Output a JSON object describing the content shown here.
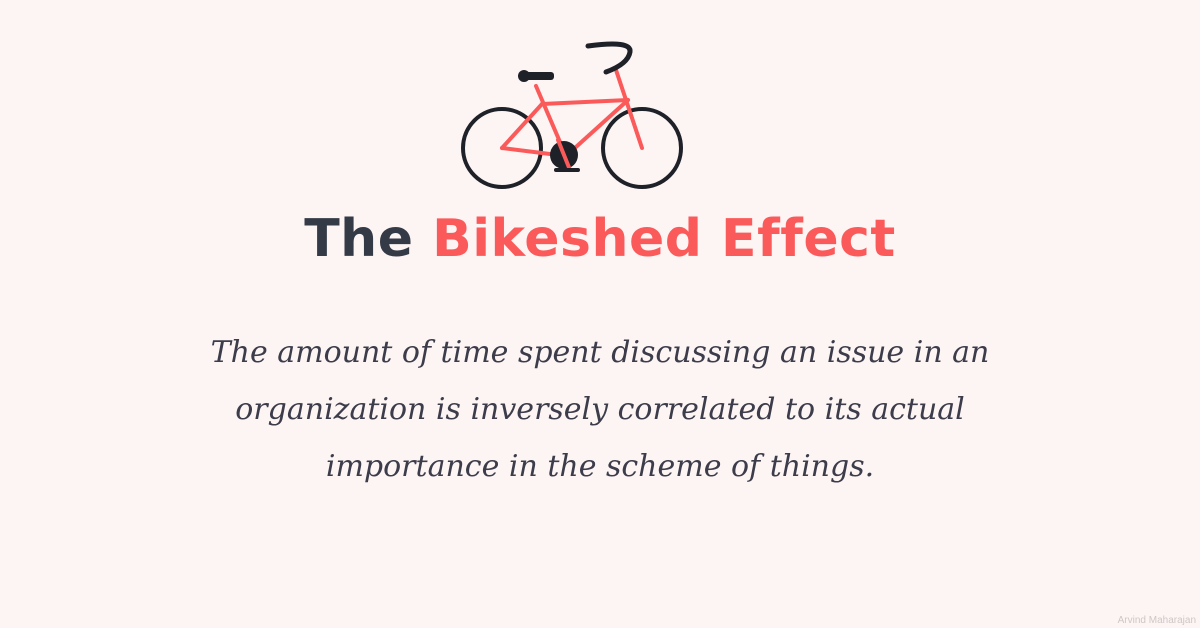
{
  "title": {
    "plain": "The",
    "accent": "Bikeshed Effect"
  },
  "quote": {
    "line1": "The amount of time spent discussing an issue in an",
    "line2": "organization is inversely correlated to its actual",
    "line3": "importance in the scheme of things."
  },
  "credit": "Arvind Maharajan",
  "illustration": {
    "icon": "bicycle-icon"
  },
  "colors": {
    "background": "#fdf4f4",
    "accent": "#fb5a5a",
    "dark": "#343a46",
    "text": "#3c3c4a"
  }
}
